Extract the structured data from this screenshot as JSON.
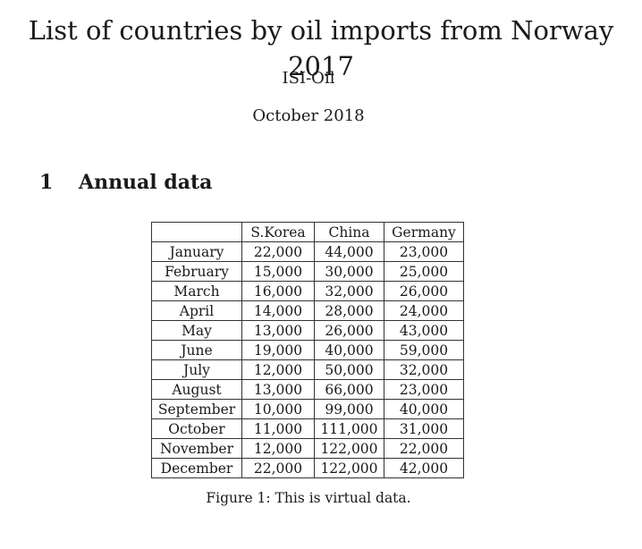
{
  "document": {
    "title": "List of countries by oil imports from Norway 2017",
    "author": "ISI-Oil",
    "date": "October 2018"
  },
  "section": {
    "number": "1",
    "title": "Annual data"
  },
  "table": {
    "columns": [
      "",
      "S.Korea",
      "China",
      "Germany"
    ],
    "rows": [
      {
        "month": "January",
        "values": [
          "22,000",
          "44,000",
          "23,000"
        ]
      },
      {
        "month": "February",
        "values": [
          "15,000",
          "30,000",
          "25,000"
        ]
      },
      {
        "month": "March",
        "values": [
          "16,000",
          "32,000",
          "26,000"
        ]
      },
      {
        "month": "April",
        "values": [
          "14,000",
          "28,000",
          "24,000"
        ]
      },
      {
        "month": "May",
        "values": [
          "13,000",
          "26,000",
          "43,000"
        ]
      },
      {
        "month": "June",
        "values": [
          "19,000",
          "40,000",
          "59,000"
        ]
      },
      {
        "month": "July",
        "values": [
          "12,000",
          "50,000",
          "32,000"
        ]
      },
      {
        "month": "August",
        "values": [
          "13,000",
          "66,000",
          "23,000"
        ]
      },
      {
        "month": "September",
        "values": [
          "10,000",
          "99,000",
          "40,000"
        ]
      },
      {
        "month": "October",
        "values": [
          "11,000",
          "111,000",
          "31,000"
        ]
      },
      {
        "month": "November",
        "values": [
          "12,000",
          "122,000",
          "22,000"
        ]
      },
      {
        "month": "December",
        "values": [
          "22,000",
          "122,000",
          "42,000"
        ]
      }
    ]
  },
  "caption": "Figure 1: This is virtual data."
}
